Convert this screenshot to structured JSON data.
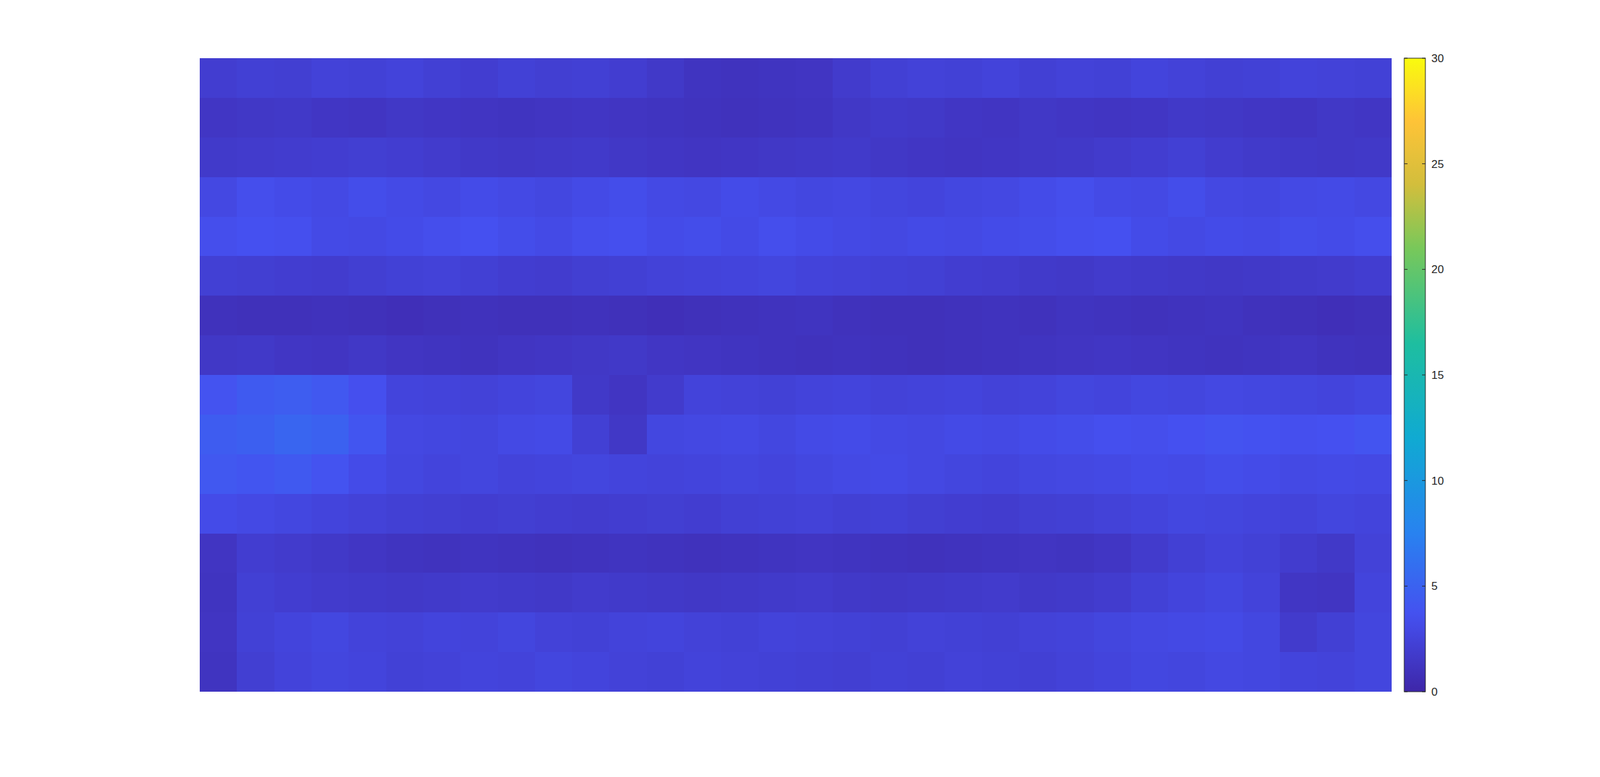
{
  "chart_data": {
    "type": "heatmap",
    "color": "parula",
    "tick_labels": false,
    "colorbar_range": [
      0,
      30
    ],
    "colorbar_ticks": [
      0,
      5,
      10,
      15,
      20,
      25,
      30
    ],
    "values": [
      [
        2.0,
        2.2,
        2.1,
        2.4,
        2.3,
        2.5,
        2.2,
        2.0,
        2.3,
        2.1,
        2.2,
        2.0,
        1.6,
        1.2,
        1.1,
        1.2,
        1.3,
        1.8,
        2.2,
        2.4,
        2.3,
        2.5,
        2.2,
        2.4,
        2.3,
        2.6,
        2.4,
        2.2,
        2.3,
        2.5,
        2.4,
        2.3
      ],
      [
        1.4,
        1.5,
        1.6,
        1.4,
        1.3,
        1.5,
        1.4,
        1.3,
        1.2,
        1.3,
        1.4,
        1.3,
        1.2,
        1.1,
        1.0,
        1.1,
        1.2,
        1.5,
        1.7,
        1.6,
        1.4,
        1.3,
        1.5,
        1.4,
        1.3,
        1.4,
        1.6,
        1.5,
        1.4,
        1.3,
        1.5,
        1.4
      ],
      [
        1.7,
        1.8,
        1.9,
        2.0,
        2.1,
        2.0,
        1.8,
        1.6,
        1.5,
        1.6,
        1.7,
        1.5,
        1.4,
        1.3,
        1.4,
        1.5,
        1.6,
        1.7,
        1.5,
        1.4,
        1.3,
        1.4,
        1.5,
        1.6,
        1.8,
        2.0,
        2.2,
        1.9,
        1.7,
        1.6,
        1.5,
        1.6
      ],
      [
        2.9,
        3.4,
        3.2,
        3.0,
        3.3,
        3.1,
        2.9,
        3.2,
        3.0,
        2.8,
        3.1,
        3.3,
        3.0,
        2.9,
        3.2,
        3.0,
        2.8,
        2.9,
        2.7,
        2.6,
        2.8,
        2.9,
        3.2,
        3.4,
        3.1,
        3.0,
        3.3,
        2.9,
        2.8,
        3.0,
        3.1,
        2.9
      ],
      [
        3.4,
        3.6,
        3.5,
        3.1,
        3.0,
        3.2,
        3.4,
        3.6,
        3.3,
        3.1,
        3.4,
        3.5,
        3.2,
        3.3,
        3.1,
        3.4,
        3.2,
        3.0,
        2.9,
        3.1,
        3.0,
        3.2,
        3.3,
        3.5,
        3.6,
        3.2,
        3.0,
        3.2,
        3.1,
        3.3,
        3.2,
        3.4
      ],
      [
        2.2,
        2.1,
        2.0,
        1.9,
        2.1,
        2.3,
        2.4,
        2.2,
        2.0,
        1.9,
        2.1,
        2.2,
        2.4,
        2.5,
        2.6,
        2.7,
        2.5,
        2.4,
        2.3,
        2.2,
        2.0,
        1.9,
        1.7,
        1.6,
        1.8,
        1.7,
        1.6,
        1.5,
        1.6,
        1.7,
        1.8,
        2.0
      ],
      [
        1.0,
        0.9,
        0.9,
        1.0,
        0.9,
        0.8,
        0.9,
        1.0,
        0.9,
        0.9,
        1.0,
        0.9,
        0.8,
        0.9,
        1.0,
        1.1,
        1.2,
        1.0,
        0.9,
        0.9,
        1.0,
        1.1,
        1.0,
        1.2,
        1.1,
        1.0,
        1.1,
        1.2,
        1.0,
        0.9,
        0.8,
        0.9
      ],
      [
        1.5,
        1.6,
        1.4,
        1.3,
        1.5,
        1.3,
        1.2,
        1.1,
        1.3,
        1.4,
        1.5,
        1.6,
        1.4,
        1.3,
        1.2,
        1.1,
        1.0,
        1.1,
        1.0,
        0.9,
        1.0,
        1.1,
        1.2,
        1.3,
        1.4,
        1.3,
        1.2,
        1.1,
        1.2,
        1.3,
        1.1,
        1.0
      ],
      [
        3.8,
        4.4,
        4.6,
        4.2,
        3.5,
        2.6,
        2.5,
        2.4,
        2.6,
        2.7,
        1.6,
        1.3,
        1.8,
        2.5,
        2.4,
        2.3,
        2.5,
        2.6,
        2.4,
        2.5,
        2.6,
        2.4,
        2.5,
        2.7,
        2.6,
        2.8,
        2.7,
        2.9,
        2.8,
        2.7,
        2.6,
        2.8
      ],
      [
        4.5,
        4.8,
        5.2,
        4.9,
        4.0,
        2.9,
        2.8,
        2.7,
        3.0,
        3.1,
        2.2,
        1.5,
        2.8,
        2.9,
        3.0,
        2.8,
        3.1,
        3.2,
        3.0,
        2.9,
        3.1,
        3.0,
        3.2,
        3.3,
        3.5,
        3.4,
        3.6,
        3.8,
        3.7,
        3.5,
        3.6,
        3.9
      ],
      [
        4.2,
        4.0,
        4.3,
        3.8,
        3.2,
        2.8,
        2.6,
        2.7,
        2.5,
        2.6,
        2.7,
        2.6,
        2.5,
        2.6,
        2.7,
        2.6,
        2.8,
        3.0,
        3.1,
        2.9,
        2.7,
        2.6,
        2.8,
        2.9,
        3.0,
        3.2,
        3.1,
        3.3,
        3.2,
        3.0,
        3.1,
        3.0
      ],
      [
        3.2,
        3.0,
        2.8,
        2.6,
        2.4,
        2.2,
        2.1,
        2.0,
        2.1,
        2.0,
        1.9,
        2.0,
        2.1,
        2.0,
        2.2,
        2.3,
        2.4,
        2.2,
        2.3,
        2.1,
        2.0,
        1.9,
        2.1,
        2.2,
        2.4,
        2.6,
        2.8,
        2.7,
        2.6,
        2.5,
        2.7,
        2.6
      ],
      [
        1.3,
        2.0,
        1.8,
        1.6,
        1.4,
        1.2,
        1.1,
        1.2,
        1.1,
        1.0,
        1.1,
        1.2,
        1.1,
        1.0,
        1.1,
        1.2,
        1.3,
        1.2,
        1.1,
        1.0,
        1.1,
        1.2,
        1.3,
        1.2,
        1.4,
        1.8,
        2.2,
        2.5,
        2.3,
        1.9,
        1.6,
        2.4
      ],
      [
        1.2,
        2.2,
        2.0,
        1.8,
        1.7,
        1.6,
        1.7,
        1.8,
        1.7,
        1.6,
        1.8,
        1.7,
        1.6,
        1.5,
        1.6,
        1.7,
        1.8,
        1.6,
        1.5,
        1.6,
        1.7,
        1.8,
        1.6,
        1.7,
        1.9,
        2.3,
        2.6,
        2.8,
        2.5,
        1.4,
        1.3,
        2.6
      ],
      [
        1.3,
        2.3,
        2.6,
        2.8,
        2.5,
        2.4,
        2.6,
        2.5,
        2.7,
        2.4,
        2.3,
        2.5,
        2.6,
        2.4,
        2.3,
        2.5,
        2.4,
        2.3,
        2.2,
        2.4,
        2.3,
        2.2,
        2.4,
        2.5,
        2.7,
        2.9,
        3.0,
        3.1,
        2.8,
        1.8,
        2.2,
        2.7
      ],
      [
        1.2,
        2.1,
        2.5,
        2.7,
        2.6,
        2.3,
        2.4,
        2.6,
        2.5,
        2.7,
        2.6,
        2.4,
        2.3,
        2.5,
        2.4,
        2.3,
        2.2,
        2.1,
        2.3,
        2.2,
        2.4,
        2.3,
        2.2,
        2.4,
        2.6,
        2.8,
        2.7,
        2.9,
        2.8,
        2.6,
        2.5,
        2.7
      ]
    ]
  }
}
